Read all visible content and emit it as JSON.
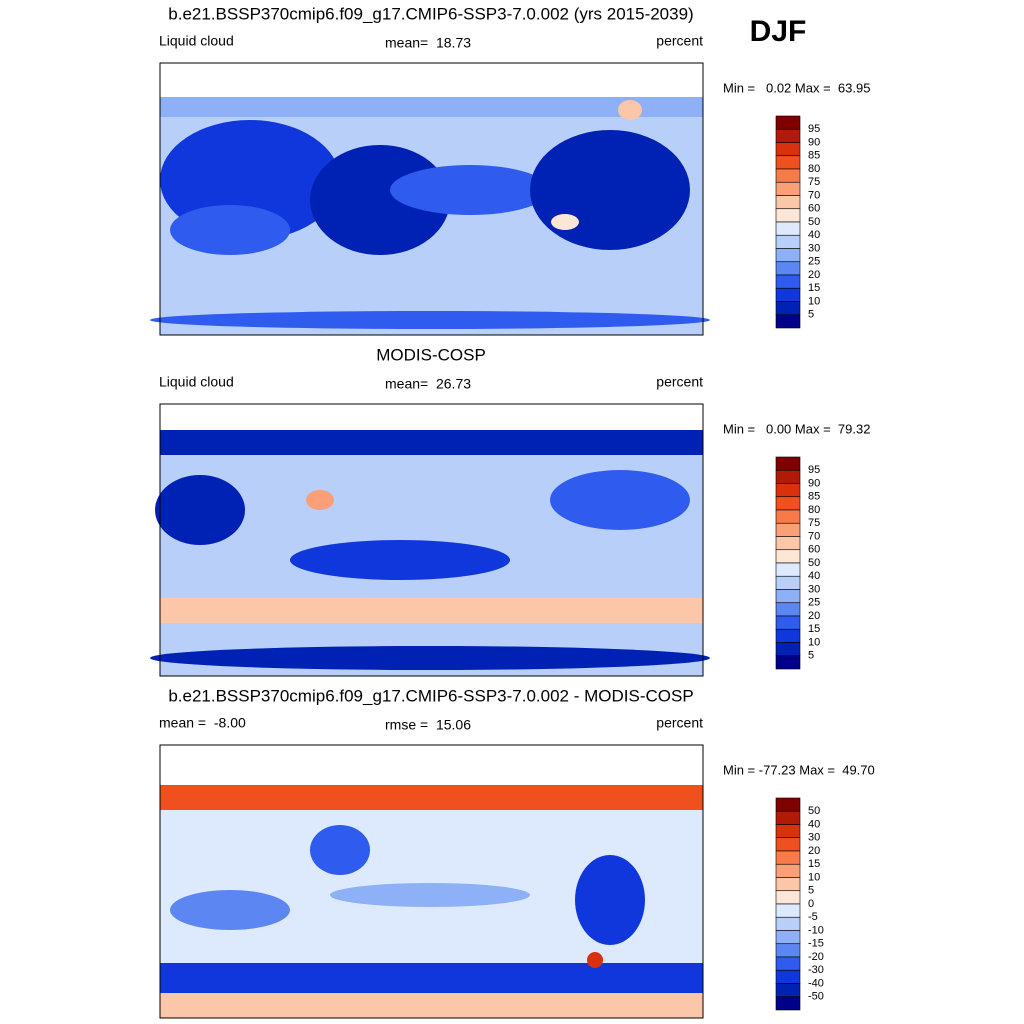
{
  "figure_label": "DJF",
  "panels": [
    {
      "title": "b.e21.BSSP370cmip6.f09_g17.CMIP6-SSP3-7.0.002 (yrs 2015-2039)",
      "left": "Liquid cloud",
      "center": "mean=  18.73",
      "right": "percent",
      "range": "Min =   0.02 Max =  63.95",
      "colorbar": {
        "labels": [
          "95",
          "90",
          "85",
          "80",
          "75",
          "70",
          "60",
          "50",
          "40",
          "30",
          "25",
          "20",
          "15",
          "10",
          "5"
        ],
        "colors": [
          "#800000",
          "#b01a06",
          "#d9300e",
          "#f0501e",
          "#f77a48",
          "#fa9f78",
          "#fcc6a8",
          "#fde6d6",
          "#dde9fc",
          "#b7cff9",
          "#8eb0f6",
          "#5c86f2",
          "#2f5cee",
          "#1037dc",
          "#0022b4",
          "#000088"
        ]
      }
    },
    {
      "title": "MODIS-COSP",
      "left": "Liquid cloud",
      "center": "mean=  26.73",
      "right": "percent",
      "range": "Min =   0.00 Max =  79.32",
      "colorbar": {
        "labels": [
          "95",
          "90",
          "85",
          "80",
          "75",
          "70",
          "60",
          "50",
          "40",
          "30",
          "25",
          "20",
          "15",
          "10",
          "5"
        ],
        "colors": [
          "#800000",
          "#b01a06",
          "#d9300e",
          "#f0501e",
          "#f77a48",
          "#fa9f78",
          "#fcc6a8",
          "#fde6d6",
          "#dde9fc",
          "#b7cff9",
          "#8eb0f6",
          "#5c86f2",
          "#2f5cee",
          "#1037dc",
          "#0022b4",
          "#000088"
        ]
      }
    },
    {
      "title": "b.e21.BSSP370cmip6.f09_g17.CMIP6-SSP3-7.0.002 - MODIS-COSP",
      "left": "mean =  -8.00",
      "center": "rmse =  15.06",
      "right": "percent",
      "range": "Min = -77.23 Max =  49.70",
      "colorbar": {
        "labels": [
          "50",
          "40",
          "30",
          "20",
          "15",
          "10",
          "5",
          "0",
          "-5",
          "-10",
          "-15",
          "-20",
          "-30",
          "-40",
          "-50"
        ],
        "colors": [
          "#800000",
          "#b01a06",
          "#d9300e",
          "#f0501e",
          "#f77a48",
          "#fa9f78",
          "#fcc6a8",
          "#fde6d6",
          "#dde9fc",
          "#b7cff9",
          "#8eb0f6",
          "#5c86f2",
          "#2f5cee",
          "#1037dc",
          "#0022b4",
          "#000088"
        ]
      }
    }
  ]
}
